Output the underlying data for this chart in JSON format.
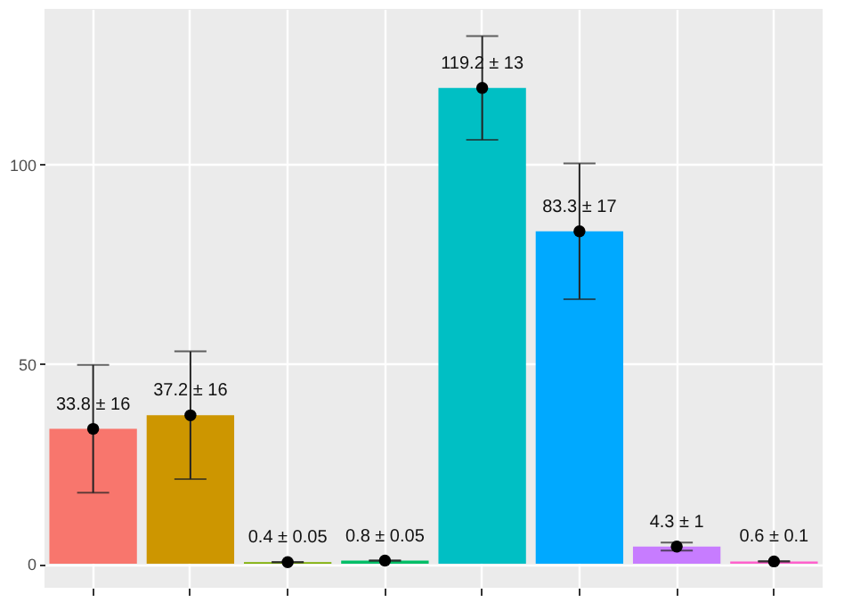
{
  "chart_data": {
    "type": "bar",
    "categories": [
      null,
      null,
      null,
      null,
      null,
      null,
      null,
      null
    ],
    "series": [
      {
        "values": [
          33.8,
          37.2,
          0.4,
          0.8,
          119.2,
          83.3,
          4.3,
          0.6
        ],
        "errors": [
          16,
          16,
          0.05,
          0.05,
          13,
          17,
          1,
          0.1
        ],
        "colors": [
          "#f8766d",
          "#cd9600",
          "#7cae00",
          "#00be67",
          "#00bfc4",
          "#00a9ff",
          "#c77cff",
          "#ff61cc"
        ],
        "value_labels": [
          "33.8 ± 16",
          "37.2 ± 16",
          "0.4 ± 0.05",
          "0.8 ± 0.05",
          "119.2 ± 13",
          "83.3 ± 17",
          "4.3 ± 1",
          "0.6 ± 0.1"
        ]
      },
      {
        "type": "scatter",
        "values": [
          33.8,
          37.2,
          0.4,
          0.8,
          119.2,
          83.3,
          4.3,
          0.6
        ],
        "color": "#000000",
        "marker": "circle"
      }
    ],
    "ylim": [
      -6,
      139
    ],
    "yticks": [
      0,
      50,
      100
    ],
    "grid": true,
    "tick_labels": "y",
    "legend": false
  }
}
